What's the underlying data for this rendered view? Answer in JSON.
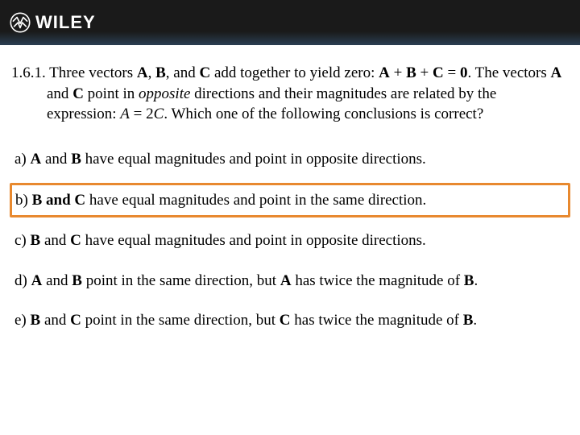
{
  "header": {
    "brand": "WILEY"
  },
  "question": {
    "number": "1.6.1.",
    "prefix_parts": [
      {
        "t": "Three vectors ",
        "style": ""
      },
      {
        "t": "A",
        "style": "bold"
      },
      {
        "t": ", ",
        "style": ""
      },
      {
        "t": "B",
        "style": "bold"
      },
      {
        "t": ", and ",
        "style": ""
      },
      {
        "t": "C",
        "style": "bold"
      },
      {
        "t": " add together to yield zero: ",
        "style": ""
      },
      {
        "t": "A",
        "style": "bold"
      },
      {
        "t": " + ",
        "style": ""
      },
      {
        "t": "B",
        "style": "bold"
      },
      {
        "t": " + ",
        "style": ""
      },
      {
        "t": "C",
        "style": "bold"
      },
      {
        "t": " = ",
        "style": ""
      },
      {
        "t": "0",
        "style": "bold"
      },
      {
        "t": ".  The vectors ",
        "style": ""
      },
      {
        "t": "A",
        "style": "bold"
      },
      {
        "t": " and ",
        "style": ""
      },
      {
        "t": "C",
        "style": "bold"
      },
      {
        "t": " point in ",
        "style": ""
      },
      {
        "t": "opposite",
        "style": "italic"
      },
      {
        "t": " directions and their magnitudes are related by the expression: ",
        "style": ""
      },
      {
        "t": "A",
        "style": "italic"
      },
      {
        "t": " = 2",
        "style": ""
      },
      {
        "t": "C",
        "style": "italic"
      },
      {
        "t": ".  Which one of the following conclusions is correct?",
        "style": ""
      }
    ]
  },
  "options": [
    {
      "label": "a)",
      "highlighted": false,
      "parts": [
        {
          "t": "A",
          "style": "bold"
        },
        {
          "t": " and ",
          "style": ""
        },
        {
          "t": "B",
          "style": "bold"
        },
        {
          "t": " have equal magnitudes and point in opposite directions.",
          "style": ""
        }
      ]
    },
    {
      "label": "b)",
      "highlighted": true,
      "parts": [
        {
          "t": "B",
          "style": "bold"
        },
        {
          "t": " and ",
          "style": "bold"
        },
        {
          "t": "C",
          "style": "bold"
        },
        {
          "t": " have equal magnitudes and point in the same direction.",
          "style": ""
        }
      ]
    },
    {
      "label": "c)",
      "highlighted": false,
      "parts": [
        {
          "t": "B",
          "style": "bold"
        },
        {
          "t": " and ",
          "style": ""
        },
        {
          "t": "C",
          "style": "bold"
        },
        {
          "t": " have equal magnitudes and point in opposite directions.",
          "style": ""
        }
      ]
    },
    {
      "label": "d)",
      "highlighted": false,
      "parts": [
        {
          "t": "A",
          "style": "bold"
        },
        {
          "t": " and ",
          "style": ""
        },
        {
          "t": "B",
          "style": "bold"
        },
        {
          "t": " point in the same direction, but ",
          "style": ""
        },
        {
          "t": "A",
          "style": "bold"
        },
        {
          "t": " has twice the magnitude of ",
          "style": ""
        },
        {
          "t": "B",
          "style": "bold"
        },
        {
          "t": ".",
          "style": ""
        }
      ]
    },
    {
      "label": "e)",
      "highlighted": false,
      "parts": [
        {
          "t": "B",
          "style": "bold"
        },
        {
          "t": " and ",
          "style": ""
        },
        {
          "t": "C",
          "style": "bold"
        },
        {
          "t": " point in the same direction, but ",
          "style": ""
        },
        {
          "t": "C",
          "style": "bold"
        },
        {
          "t": " has twice the magnitude of ",
          "style": ""
        },
        {
          "t": "B",
          "style": "bold"
        },
        {
          "t": ".",
          "style": ""
        }
      ]
    }
  ],
  "colors": {
    "highlight_border": "#e8892f",
    "header_bg_top": "#1a1a1a",
    "header_bg_bottom": "#2a3e52",
    "text": "#000000",
    "logo": "#ffffff"
  }
}
